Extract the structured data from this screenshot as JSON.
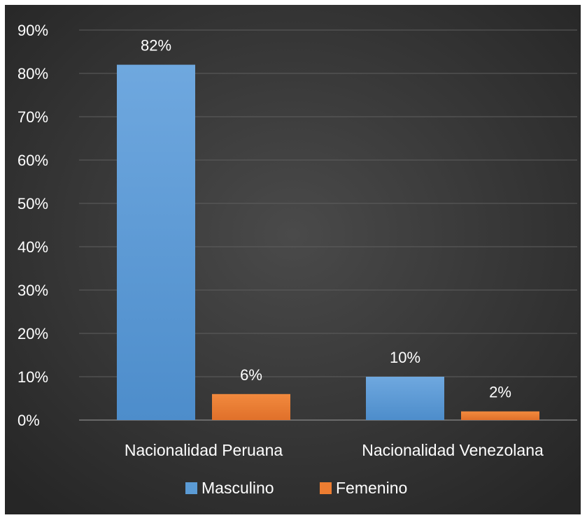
{
  "chart_data": {
    "type": "bar",
    "categories": [
      "Nacionalidad Peruana",
      "Nacionalidad Venezolana"
    ],
    "series": [
      {
        "name": "Masculino",
        "values": [
          82,
          10
        ],
        "labels": [
          "82%",
          "10%"
        ],
        "color": "#5B9BD5"
      },
      {
        "name": "Femenino",
        "values": [
          6,
          2
        ],
        "labels": [
          "6%",
          "2%"
        ],
        "color": "#ED7D31"
      }
    ],
    "ylim": [
      0,
      90
    ],
    "yticks": [
      0,
      10,
      20,
      30,
      40,
      50,
      60,
      70,
      80,
      90
    ],
    "ytick_labels": [
      "0%",
      "10%",
      "20%",
      "30%",
      "40%",
      "50%",
      "60%",
      "70%",
      "80%",
      "90%"
    ],
    "grid": true,
    "legend": "bottom",
    "background": "#3A3A3A",
    "text_color": "#FFFFFF"
  }
}
